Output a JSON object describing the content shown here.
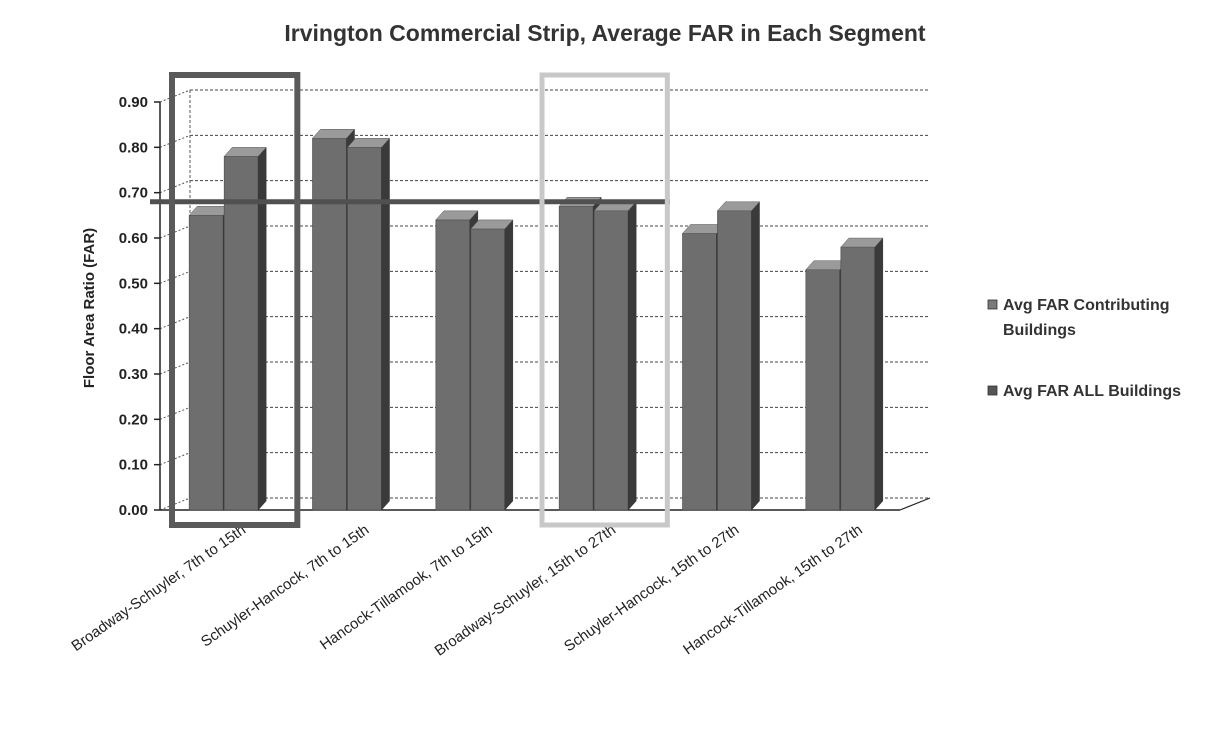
{
  "chart_data": {
    "type": "bar",
    "title": "Irvington Commercial Strip, Average FAR in Each Segment",
    "xlabel": "",
    "ylabel": "Floor Area Ratio (FAR)",
    "ylim": [
      0,
      0.9
    ],
    "yticks": [
      "0.00",
      "0.10",
      "0.20",
      "0.30",
      "0.40",
      "0.50",
      "0.60",
      "0.70",
      "0.80",
      "0.90"
    ],
    "categories": [
      "Broadway-Schuyler, 7th to 15th",
      "Schuyler-Hancock, 7th to 15th",
      "Hancock-Tillamook, 7th to 15th",
      "Broadway-Schuyler, 15th to 27th",
      "Schuyler-Hancock, 15th to 27th",
      "Hancock-Tillamook, 15th to 27th"
    ],
    "series": [
      {
        "name": "Avg FAR Contributing Buildings",
        "values": [
          0.65,
          0.82,
          0.64,
          0.67,
          0.61,
          0.53
        ]
      },
      {
        "name": "Avg FAR ALL Buildings",
        "values": [
          0.78,
          0.8,
          0.62,
          0.66,
          0.66,
          0.58
        ]
      }
    ],
    "reference_line": 0.68,
    "highlighted_categories": [
      0,
      3
    ],
    "grid": true,
    "legend_position": "right",
    "colors": {
      "bar_front": "#6e6e6e",
      "bar_side": "#3a3a3a",
      "bar_top": "#9a9a9a",
      "highlight_dark": "#5a5a5a",
      "highlight_light": "#c8c8c8",
      "reference_line": "#505050"
    }
  }
}
